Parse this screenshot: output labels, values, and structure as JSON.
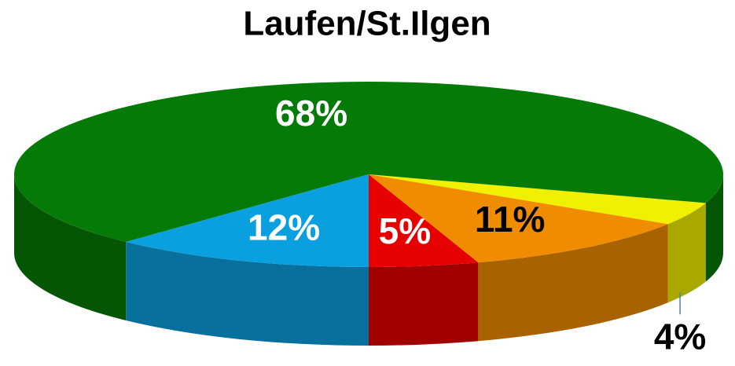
{
  "chart_data": {
    "type": "pie",
    "title": "Laufen/St.Ilgen",
    "values": [
      5,
      11,
      4,
      68,
      12
    ],
    "value_labels": [
      "5%",
      "11%",
      "4%",
      "68%",
      "12%"
    ],
    "colors": [
      "#e60000",
      "#f08c00",
      "#f0f000",
      "#067a06",
      "#0aa0e0"
    ],
    "3d": true
  }
}
